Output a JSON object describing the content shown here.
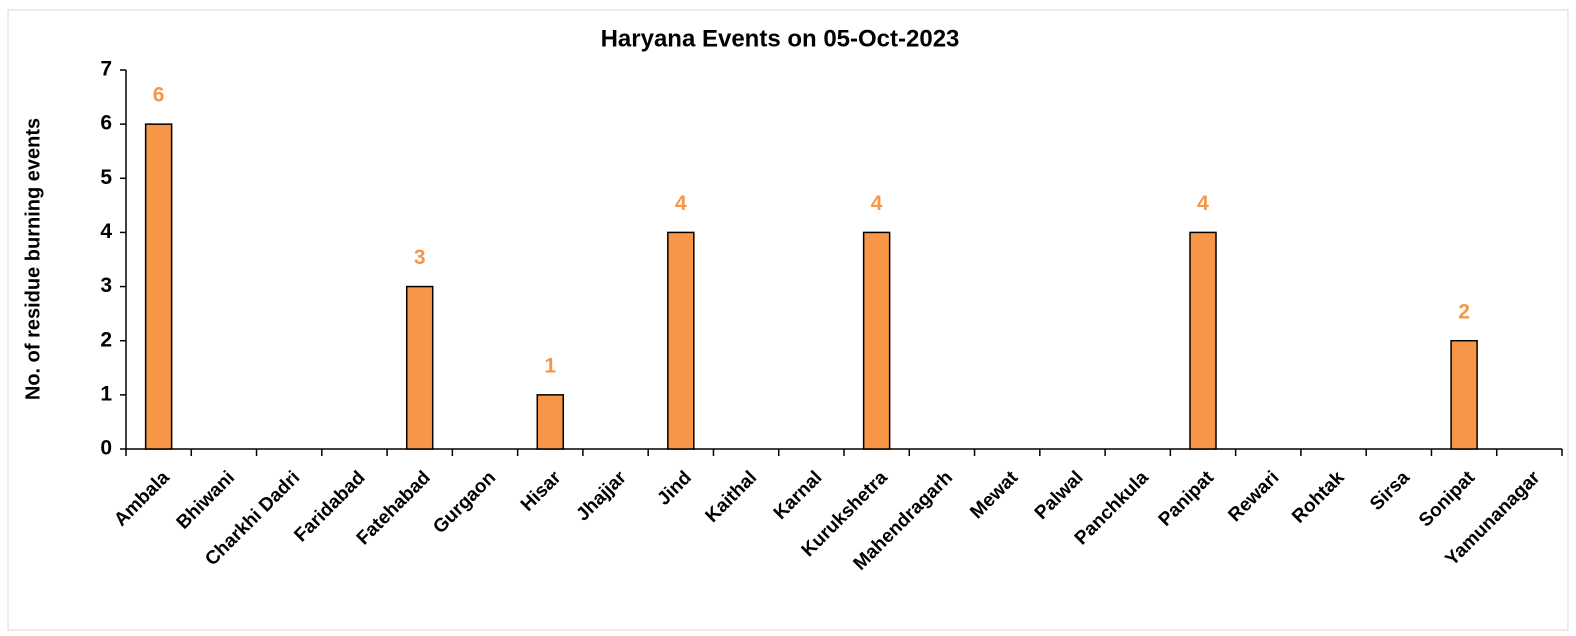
{
  "chart_data": {
    "type": "bar",
    "title": "Haryana Events on 05-Oct-2023",
    "y_label": "No. of residue burning events",
    "categories": [
      "Ambala",
      "Bhiwani",
      "Charkhi Dadri",
      "Faridabad",
      "Fatehabad",
      "Gurgaon",
      "Hisar",
      "Jhajjar",
      "Jind",
      "Kaithal",
      "Karnal",
      "Kurukshetra",
      "Mahendragarh",
      "Mewat",
      "Palwal",
      "Panchkula",
      "Panipat",
      "Rewari",
      "Rohtak",
      "Sirsa",
      "Sonipat",
      "Yamunanagar"
    ],
    "values": [
      6,
      0,
      0,
      0,
      3,
      0,
      1,
      0,
      4,
      0,
      0,
      4,
      0,
      0,
      0,
      0,
      4,
      0,
      0,
      0,
      2,
      0
    ],
    "color": "#f79646",
    "label_color": "#f79646",
    "ylim": [
      0,
      7
    ],
    "yticks": [
      0,
      1,
      2,
      3,
      4,
      5,
      6,
      7
    ],
    "grid": false
  }
}
